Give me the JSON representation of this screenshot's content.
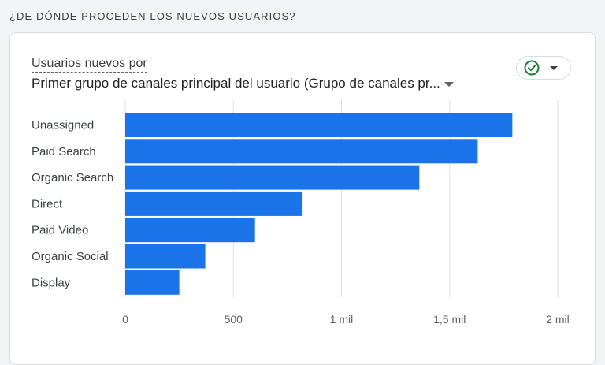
{
  "section": {
    "title": "¿DE DÓNDE PROCEDEN LOS NUEVOS USUARIOS?"
  },
  "card": {
    "metric_label": "Usuarios nuevos por",
    "dimension_label": "Primer grupo de canales principal del usuario (Grupo de canales pr...",
    "compare_icon": "check-circle-icon",
    "compare_dropdown_icon": "caret-down-icon"
  },
  "colors": {
    "bar": "#1a73e8",
    "check": "#188038",
    "grid": "#e0e0e0"
  },
  "chart_data": {
    "type": "bar",
    "orientation": "horizontal",
    "categories": [
      "Unassigned",
      "Paid Search",
      "Organic Search",
      "Direct",
      "Paid Video",
      "Organic Social",
      "Display"
    ],
    "values": [
      1790,
      1630,
      1360,
      820,
      600,
      370,
      250
    ],
    "xlim": [
      0,
      2000
    ],
    "ticks": [
      0,
      500,
      1000,
      1500,
      2000
    ],
    "tick_labels": [
      "0",
      "500",
      "1 mil",
      "1,5 mil",
      "2 mil"
    ],
    "grid": true,
    "title": "",
    "xlabel": "",
    "ylabel": ""
  }
}
